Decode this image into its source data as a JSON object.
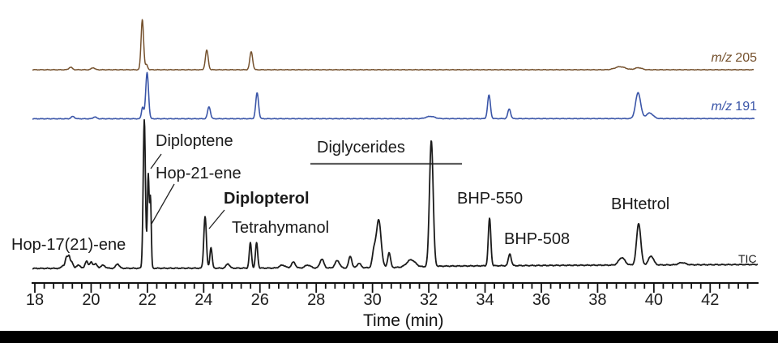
{
  "figure": {
    "background": "#ffffff",
    "bottom_bar_color": "#000000",
    "trace_colors": {
      "mz205": "#75512d",
      "mz191": "#3a55a8",
      "tic": "#1b1b1b"
    },
    "diglycerides_line_color": "#5c5c5c"
  },
  "chart_data": {
    "type": "line",
    "title": "",
    "xlabel": "Time (min)",
    "ylabel": "",
    "xlim": [
      17.9,
      43.7
    ],
    "grid": false,
    "legend_position": "right-inline",
    "x_ticks": [
      18,
      20,
      22,
      24,
      26,
      28,
      30,
      32,
      34,
      36,
      38,
      40,
      42
    ],
    "minor_ticks_per_major": 5,
    "peak_fields": [
      "time_min",
      "rel_intensity_pct",
      "sigma_min"
    ],
    "series": [
      {
        "name": "m/z 205",
        "name_prefix": "m/z",
        "name_value": "205",
        "color": "#75512d",
        "peaks": [
          [
            19.27,
            5,
            0.06
          ],
          [
            20.07,
            4,
            0.06
          ],
          [
            21.82,
            100,
            0.045
          ],
          [
            21.97,
            10,
            0.04
          ],
          [
            24.11,
            39,
            0.05
          ],
          [
            25.69,
            36,
            0.05
          ],
          [
            38.8,
            6,
            0.18
          ],
          [
            39.45,
            4,
            0.12
          ]
        ]
      },
      {
        "name": "m/z 191",
        "name_prefix": "m/z",
        "name_value": "191",
        "color": "#3a55a8",
        "peaks": [
          [
            19.35,
            5,
            0.06
          ],
          [
            20.13,
            4,
            0.06
          ],
          [
            21.83,
            25,
            0.04
          ],
          [
            21.99,
            100,
            0.05
          ],
          [
            24.19,
            26,
            0.05
          ],
          [
            25.9,
            56,
            0.05
          ],
          [
            32.06,
            5,
            0.15
          ],
          [
            34.14,
            51,
            0.05
          ],
          [
            34.86,
            21,
            0.05
          ],
          [
            39.44,
            56,
            0.09
          ],
          [
            39.85,
            12,
            0.12
          ]
        ]
      },
      {
        "name": "TIC",
        "color": "#1b1b1b",
        "peaks": [
          [
            19.0,
            2,
            0.05
          ],
          [
            19.12,
            7,
            0.04
          ],
          [
            19.21,
            8,
            0.04
          ],
          [
            19.31,
            4,
            0.05
          ],
          [
            19.55,
            2,
            0.08
          ],
          [
            19.84,
            5,
            0.05
          ],
          [
            20.0,
            4,
            0.05
          ],
          [
            20.15,
            3,
            0.06
          ],
          [
            20.42,
            2,
            0.08
          ],
          [
            20.94,
            3,
            0.06
          ],
          [
            21.89,
            100,
            0.04
          ],
          [
            22.03,
            63,
            0.032
          ],
          [
            22.11,
            46,
            0.028
          ],
          [
            24.05,
            35,
            0.045
          ],
          [
            24.26,
            14,
            0.04
          ],
          [
            24.86,
            3,
            0.06
          ],
          [
            25.66,
            17,
            0.04
          ],
          [
            25.88,
            17,
            0.04
          ],
          [
            26.8,
            2,
            0.1
          ],
          [
            27.19,
            4,
            0.07
          ],
          [
            27.7,
            2,
            0.1
          ],
          [
            28.2,
            6,
            0.07
          ],
          [
            28.75,
            5,
            0.08
          ],
          [
            29.21,
            8,
            0.055
          ],
          [
            29.52,
            3,
            0.07
          ],
          [
            30.05,
            10,
            0.06
          ],
          [
            30.22,
            32,
            0.085
          ],
          [
            30.59,
            10,
            0.05
          ],
          [
            31.37,
            5,
            0.15
          ],
          [
            32.09,
            85,
            0.065
          ],
          [
            34.16,
            32,
            0.045
          ],
          [
            34.88,
            8,
            0.05
          ],
          [
            38.86,
            5,
            0.11
          ],
          [
            39.46,
            28,
            0.075
          ],
          [
            39.9,
            6,
            0.09
          ],
          [
            41.0,
            1.5,
            0.12
          ]
        ]
      }
    ],
    "annotations": [
      {
        "label": "Hop-17(21)-ene",
        "t": 19.2
      },
      {
        "label": "Diploptene",
        "t": 21.89
      },
      {
        "label": "Hop-21-ene",
        "t": 22.03
      },
      {
        "label": "Diplopterol",
        "t": 24.05,
        "bold": true
      },
      {
        "label": "Tetrahymanol",
        "t": 25.8
      },
      {
        "label": "Diglycerides",
        "t_range": [
          27.8,
          33.2
        ]
      },
      {
        "label": "BHP-550",
        "t": 34.16
      },
      {
        "label": "BHP-508",
        "t": 34.88
      },
      {
        "label": "BHtetrol",
        "t": 39.46
      }
    ]
  }
}
